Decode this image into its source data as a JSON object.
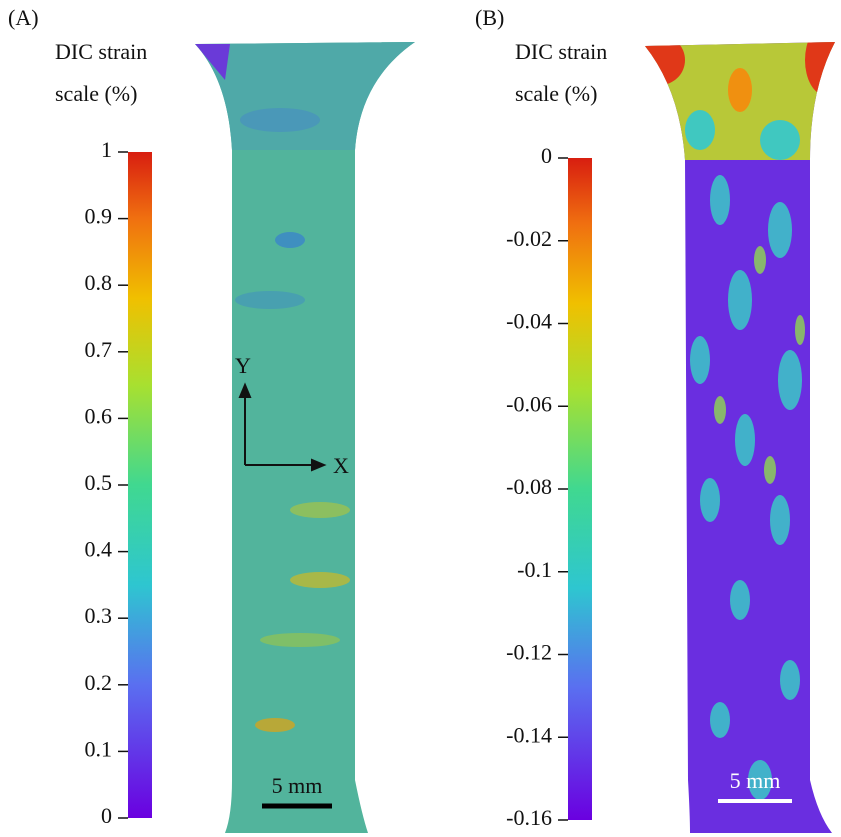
{
  "panels": [
    {
      "label": "(A)",
      "title": [
        "DIC strain",
        "scale (%)"
      ],
      "clim": [
        0,
        1
      ],
      "ticks": [
        0,
        0.1,
        0.2,
        0.3,
        0.4,
        0.5,
        0.6,
        0.7,
        0.8,
        0.9,
        1
      ],
      "scalebar": "5 mm",
      "axis_y": "Y",
      "axis_x": "X"
    },
    {
      "label": "(B)",
      "title": [
        "DIC strain",
        "scale (%)"
      ],
      "clim": [
        -0.16,
        0
      ],
      "ticks": [
        -0.16,
        -0.14,
        -0.12,
        -0.1,
        -0.08,
        -0.06,
        -0.04,
        -0.02,
        0
      ],
      "scalebar": "5 mm"
    }
  ]
}
